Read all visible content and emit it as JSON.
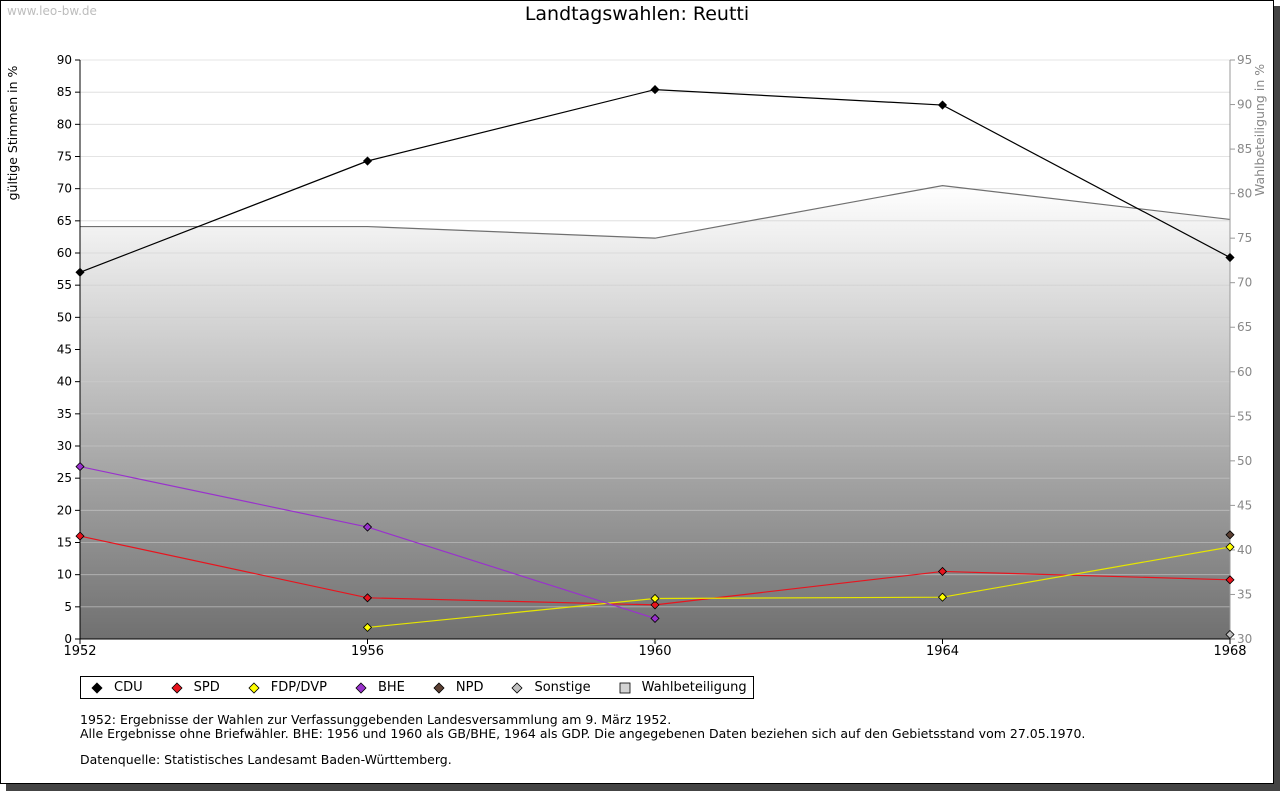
{
  "watermark": "www.leo-bw.de",
  "chart_data": {
    "type": "line",
    "title": "Landtagswahlen: Reutti",
    "ylabel": "gültige Stimmen in %",
    "y2label": "Wahlbeteiligung in %",
    "x": [
      1952,
      1956,
      1960,
      1964,
      1968
    ],
    "ylim": [
      0,
      90
    ],
    "y2lim": [
      30,
      95
    ],
    "yticks": [
      0,
      5,
      10,
      15,
      20,
      25,
      30,
      35,
      40,
      45,
      50,
      55,
      60,
      65,
      70,
      75,
      80,
      85,
      90
    ],
    "y2ticks": [
      30,
      35,
      40,
      45,
      50,
      55,
      60,
      65,
      70,
      75,
      80,
      85,
      90,
      95
    ],
    "grid": true,
    "legend_position": "bottom",
    "series": [
      {
        "name": "CDU",
        "color": "#000000",
        "values": [
          57.0,
          74.3,
          85.4,
          83.0,
          59.3
        ]
      },
      {
        "name": "SPD",
        "color": "#e8141e",
        "values": [
          16.0,
          6.4,
          5.3,
          10.5,
          9.2
        ]
      },
      {
        "name": "FDP/DVP",
        "color": "#ffff00",
        "values": [
          null,
          1.8,
          6.3,
          6.5,
          14.3
        ]
      },
      {
        "name": "BHE",
        "color": "#9932cc",
        "values": [
          26.8,
          17.4,
          3.2,
          null,
          null
        ]
      },
      {
        "name": "NPD",
        "color": "#5c4033",
        "values": [
          null,
          null,
          null,
          null,
          16.2
        ]
      },
      {
        "name": "Sonstige",
        "color": "#c0c0c0",
        "values": [
          null,
          null,
          null,
          null,
          0.7
        ]
      }
    ],
    "turnout": {
      "name": "Wahlbeteiligung",
      "color": "#d3d3d3",
      "axis": "right",
      "values": [
        76.3,
        76.3,
        75.0,
        80.9,
        77.1
      ]
    }
  },
  "notes": {
    "line1": "1952: Ergebnisse der Wahlen zur Verfassunggebenden Landesversammlung am 9. März 1952.",
    "line2": "Alle Ergebnisse ohne Briefwähler. BHE: 1956 und 1960 als GB/BHE, 1964 als GDP. Die angegebenen Daten beziehen sich auf den Gebietsstand vom 27.05.1970.",
    "source": "Datenquelle: Statistisches Landesamt Baden-Württemberg."
  }
}
